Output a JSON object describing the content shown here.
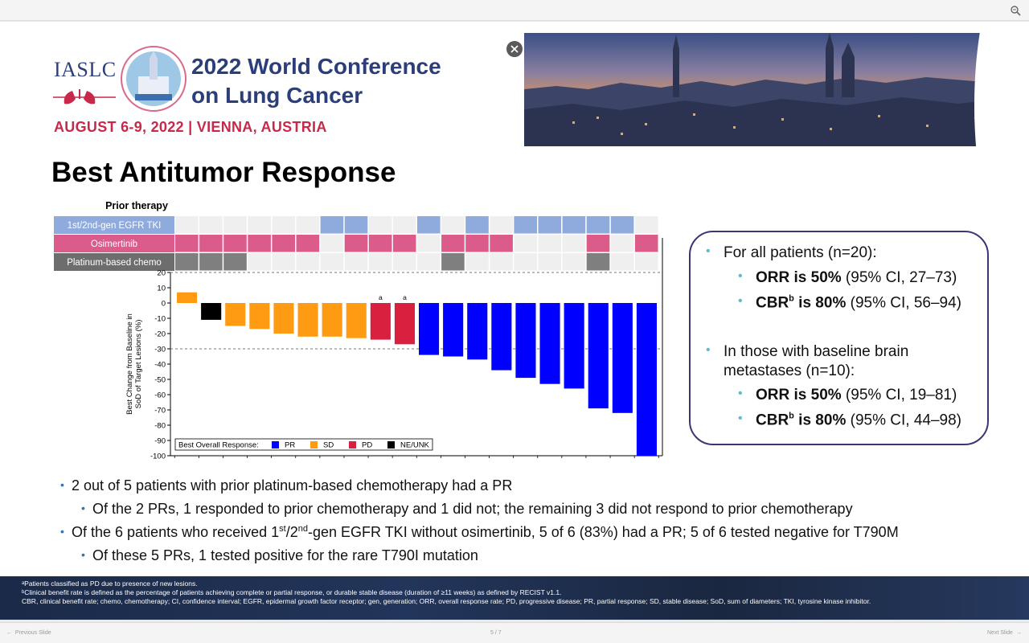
{
  "viewer": {
    "prev_label": "Previous Slide",
    "next_label": "Next Slide",
    "page_indicator": "5 / 7"
  },
  "header": {
    "org": "IASLC",
    "conference_line1": "2022 World Conference",
    "conference_line2": "on Lung Cancer",
    "dates_location": "AUGUST 6-9, 2022 | VIENNA, AUSTRIA"
  },
  "slide_title": "Best Antitumor Response",
  "chart_data": {
    "type": "bar",
    "title": "Prior therapy",
    "ylabel_line1": "Best Change from Baseline in",
    "ylabel_line2": "SoD of Target Lesions (%)",
    "ylim": [
      -100,
      20
    ],
    "yticks": [
      20,
      10,
      0,
      -10,
      -20,
      -30,
      -40,
      -50,
      -60,
      -70,
      -80,
      -90,
      -100
    ],
    "reference_lines": [
      20,
      -30
    ],
    "values": [
      7,
      -11,
      -15,
      -17,
      -20,
      -22,
      -22,
      -23,
      -24,
      -27,
      -34,
      -35,
      -37,
      -44,
      -49,
      -53,
      -56,
      -69,
      -72,
      -100
    ],
    "response": [
      "SD",
      "NE/UNK",
      "SD",
      "SD",
      "SD",
      "SD",
      "SD",
      "SD",
      "PD",
      "PD",
      "PR",
      "PR",
      "PR",
      "PR",
      "PR",
      "PR",
      "PR",
      "PR",
      "PR",
      "PR"
    ],
    "annotations": [
      "",
      "",
      "",
      "",
      "",
      "",
      "",
      "",
      "a",
      "a",
      "",
      "",
      "",
      "",
      "",
      "",
      "",
      "",
      "",
      ""
    ],
    "legend_title": "Best Overall Response:",
    "legend": [
      {
        "label": "PR",
        "color": "#0000ff"
      },
      {
        "label": "SD",
        "color": "#ff9b12"
      },
      {
        "label": "PD",
        "color": "#d9213f"
      },
      {
        "label": "NE/UNK",
        "color": "#000000"
      }
    ],
    "prior_therapy_rows": [
      {
        "label": "1st/2nd-gen EGFR TKI",
        "color": "#8faadc",
        "label_bg": "#8faadc",
        "flags": [
          0,
          0,
          0,
          0,
          0,
          0,
          1,
          1,
          0,
          0,
          1,
          0,
          1,
          0,
          1,
          1,
          1,
          1,
          1,
          0
        ]
      },
      {
        "label": "Osimertinib",
        "color": "#db5b8b",
        "label_bg": "#db5b8b",
        "flags": [
          1,
          1,
          1,
          1,
          1,
          1,
          0,
          1,
          1,
          1,
          0,
          1,
          1,
          1,
          0,
          0,
          0,
          1,
          0,
          1
        ]
      },
      {
        "label": "Platinum-based chemo",
        "color": "#7f7f7f",
        "label_bg": "#6d6d6d",
        "flags": [
          1,
          1,
          1,
          0,
          0,
          0,
          0,
          0,
          0,
          0,
          0,
          1,
          0,
          0,
          0,
          0,
          0,
          1,
          0,
          0
        ]
      }
    ],
    "empty_cell_color": "#efefef"
  },
  "summary": {
    "all_heading": "For all patients (n=20):",
    "all_orr_bold": "ORR is 50%",
    "all_orr_rest": " (95% CI, 27–73)",
    "all_cbr_bold_pre": "CBR",
    "all_cbr_sup": "b",
    "all_cbr_bold_post": " is 80%",
    "all_cbr_rest": " (95% CI, 56–94)",
    "brain_heading_1": "In those with baseline brain",
    "brain_heading_2": "metastases (n=10):",
    "brain_orr_bold": "ORR is 50%",
    "brain_orr_rest": " (95% CI, 19–81)",
    "brain_cbr_bold_pre": "CBR",
    "brain_cbr_sup": "b",
    "brain_cbr_bold_post": " is 80%",
    "brain_cbr_rest": " (95% CI, 44–98)"
  },
  "bullets": {
    "b1": "2 out of 5 patients with prior platinum-based chemotherapy had a PR",
    "b1a": "Of the 2 PRs, 1 responded to prior chemotherapy and 1 did not; the remaining 3 did not respond to prior chemotherapy",
    "b2_pre": "Of the 6 patients who received 1",
    "b2_sup1": "st",
    "b2_mid": "/2",
    "b2_sup2": "nd",
    "b2_post": "-gen EGFR TKI without osimertinib, 5 of 6 (83%) had a PR; 5 of 6 tested negative for T790M",
    "b2a": "Of these 5 PRs, 1 tested positive for the rare T790I mutation"
  },
  "footnotes": {
    "a": "ᵃPatients classified as PD due to presence of new lesions.",
    "b": "ᵇClinical benefit rate is defined as the percentage of patients achieving complete or partial response, or durable stable disease (duration of ≥11 weeks) as defined by RECIST v1.1.",
    "c": "CBR, clinical benefit rate; chemo, chemotherapy; CI, confidence interval; EGFR, epidermal growth factor receptor; gen, generation; ORR, overall response rate; PD, progressive disease; PR, partial response; SD, stable disease; SoD, sum of diameters; TKI, tyrosine kinase inhibitor."
  }
}
